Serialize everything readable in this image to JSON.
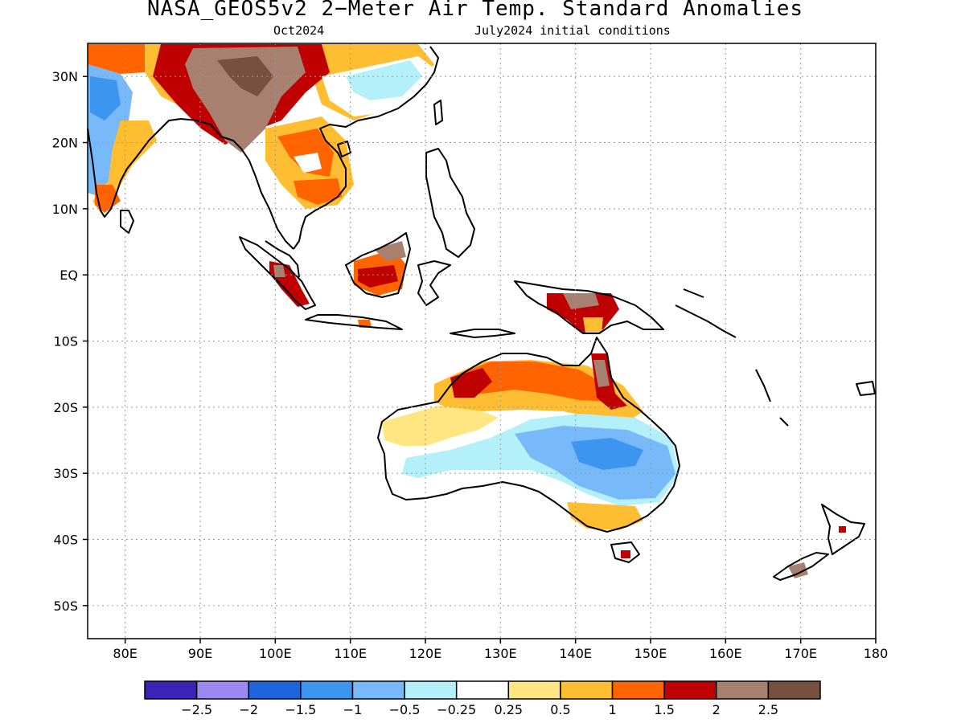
{
  "title": "NASA_GEOS5v2 2−Meter Air Temp. Standard Anomalies",
  "subtitle_left": "Oct2024",
  "subtitle_right": "July2024 initial conditions",
  "map": {
    "lon_range": [
      75,
      180
    ],
    "lat_range": [
      -55,
      35
    ],
    "lat_ticks": [
      {
        "value": 30,
        "label": "30N"
      },
      {
        "value": 20,
        "label": "20N"
      },
      {
        "value": 10,
        "label": "10N"
      },
      {
        "value": 0,
        "label": "EQ"
      },
      {
        "value": -10,
        "label": "10S"
      },
      {
        "value": -20,
        "label": "20S"
      },
      {
        "value": -30,
        "label": "30S"
      },
      {
        "value": -40,
        "label": "40S"
      },
      {
        "value": -50,
        "label": "50S"
      }
    ],
    "lon_ticks": [
      {
        "value": 80,
        "label": "80E"
      },
      {
        "value": 90,
        "label": "90E"
      },
      {
        "value": 100,
        "label": "100E"
      },
      {
        "value": 110,
        "label": "110E"
      },
      {
        "value": 120,
        "label": "120E"
      },
      {
        "value": 130,
        "label": "130E"
      },
      {
        "value": 140,
        "label": "140E"
      },
      {
        "value": 150,
        "label": "150E"
      },
      {
        "value": 160,
        "label": "160E"
      },
      {
        "value": 170,
        "label": "170E"
      },
      {
        "value": 180,
        "label": "180"
      }
    ],
    "grid": "dotted"
  },
  "colorbar": {
    "colors": [
      "#3b22b8",
      "#9b88f0",
      "#1e64dc",
      "#3c96f0",
      "#78b9fa",
      "#b4f0fa",
      "#ffffff",
      "#ffe682",
      "#ffbe32",
      "#ff6400",
      "#c00000",
      "#a88070",
      "#785040"
    ],
    "labels": [
      "−2.5",
      "−2",
      "−1.5",
      "−1",
      "−0.5",
      "−0.25",
      "0.25",
      "0.5",
      "1",
      "1.5",
      "2",
      "2.5"
    ]
  }
}
